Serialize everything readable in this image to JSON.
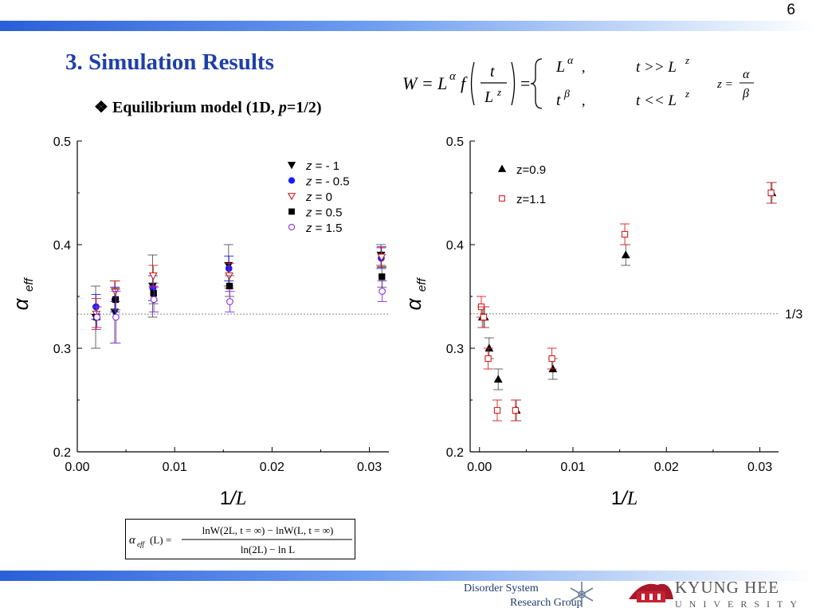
{
  "page_number": "6",
  "slide_title": "3. Simulation Results",
  "subtitle": {
    "bullet": "❖",
    "text_before": "Equilibrium model (1D, ",
    "p_symbol": "p",
    "text_after": "=1/2)"
  },
  "formula_main": {
    "lhs": "W = L",
    "alpha": "α",
    "f": "f",
    "t": "t",
    "L": "L",
    "z": "z",
    "eq": "=",
    "case1_value": "L",
    "case1_cond": "t >> L",
    "case2_value": "t",
    "beta": "β",
    "case2_cond": "t << L",
    "comma": ",",
    "z_eq": "z =",
    "ratio_num": "α",
    "ratio_den": "β"
  },
  "formula_alpha_eff": {
    "lhs": "α",
    "lhs_sub": "eff",
    "lhs_arg": "(L) =",
    "numerator": "lnW(2L, t = ∞) − lnW(L, t = ∞)",
    "denominator": "ln(2L) − ln L"
  },
  "logos": {
    "dsrg_line1": "Disorder System",
    "dsrg_line2": "Research Group",
    "khu_line1": "KYUNG HEE",
    "khu_line2": "UNIVERSITY"
  },
  "colors": {
    "title": "#1f3fa8",
    "band_start": "#2a5fd8",
    "series_black": "#000000",
    "series_blue": "#1a1aff",
    "series_red": "#d42020",
    "series_purple": "#8a2be2"
  },
  "chart_data": [
    {
      "type": "scatter",
      "xlabel_left": "1",
      "xlabel_slash": "/",
      "xlabel_italic": "L",
      "ylabel_symbol": "α",
      "ylabel_sub": "eff",
      "xlim": [
        0.0,
        0.032
      ],
      "ylim": [
        0.2,
        0.5
      ],
      "xticks": [
        "0.00",
        "0.01",
        "0.02",
        "0.03"
      ],
      "xtick_values": [
        0.0,
        0.01,
        0.02,
        0.03
      ],
      "yticks": [
        "0.2",
        "0.3",
        "0.4",
        "0.5"
      ],
      "ytick_values": [
        0.2,
        0.3,
        0.4,
        0.5
      ],
      "reference_line": 0.333,
      "legend_position": "top-right",
      "series": [
        {
          "name_var": "z",
          "name_value": " = - 1",
          "marker": "triangle-down",
          "color": "#000000",
          "fill": true,
          "x": [
            0.00195,
            0.0039,
            0.0078,
            0.0156,
            0.03125
          ],
          "y": [
            0.33,
            0.335,
            0.36,
            0.38,
            0.39
          ],
          "err": [
            0.03,
            0.03,
            0.03,
            0.02,
            0.01
          ]
        },
        {
          "name_var": "z",
          "name_value": " = - 0.5",
          "marker": "circle",
          "color": "#1a1aff",
          "fill": true,
          "x": [
            0.00195,
            0.0039,
            0.0078,
            0.0156,
            0.03125
          ],
          "y": [
            0.34,
            0.347,
            0.358,
            0.377,
            0.387
          ],
          "err": [
            0.012,
            0.012,
            0.012,
            0.012,
            0.01
          ]
        },
        {
          "name_var": "z",
          "name_value": " = 0",
          "marker": "triangle-down",
          "color": "#d42020",
          "fill": false,
          "x": [
            0.00195,
            0.0039,
            0.0078,
            0.0156,
            0.03125
          ],
          "y": [
            0.333,
            0.355,
            0.37,
            0.37,
            0.388
          ],
          "err": [
            0.015,
            0.01,
            0.01,
            0.012,
            0.01
          ]
        },
        {
          "name_var": "z",
          "name_value": " = 0.5",
          "marker": "square",
          "color": "#000000",
          "fill": true,
          "x": [
            0.00195,
            0.0039,
            0.0078,
            0.0156,
            0.03125
          ],
          "y": [
            0.33,
            0.347,
            0.353,
            0.36,
            0.369
          ],
          "err": [
            0.01,
            0.01,
            0.01,
            0.01,
            0.01
          ]
        },
        {
          "name_var": "z",
          "name_value": " = 1.5",
          "marker": "circle",
          "color": "#8a2be2",
          "fill": false,
          "x": [
            0.00195,
            0.0039,
            0.0078,
            0.0156,
            0.03125
          ],
          "y": [
            0.33,
            0.33,
            0.347,
            0.345,
            0.355
          ],
          "err": [
            0.01,
            0.025,
            0.012,
            0.01,
            0.01
          ]
        }
      ]
    },
    {
      "type": "scatter",
      "xlabel_left": "1",
      "xlabel_slash": "/",
      "xlabel_italic": "L",
      "ylabel_symbol": "α",
      "ylabel_sub": "eff",
      "xlim": [
        -0.001,
        0.032
      ],
      "ylim": [
        0.2,
        0.5
      ],
      "xticks": [
        "0.00",
        "0.01",
        "0.02",
        "0.03"
      ],
      "xtick_values": [
        0.0,
        0.01,
        0.02,
        0.03
      ],
      "yticks": [
        "0.2",
        "0.3",
        "0.4",
        "0.5"
      ],
      "ytick_values": [
        0.2,
        0.3,
        0.4,
        0.5
      ],
      "reference_line": 0.3333,
      "reference_label": "1/3",
      "legend_position": "top-left",
      "series": [
        {
          "name": "z=0.9",
          "marker": "triangle-up",
          "color": "#000000",
          "fill": true,
          "x": [
            0.00024,
            0.00049,
            0.00098,
            0.00195,
            0.0039,
            0.0078,
            0.0156,
            0.03125
          ],
          "y": [
            0.33,
            0.33,
            0.3,
            0.27,
            0.24,
            0.28,
            0.39,
            0.45
          ],
          "err": [
            0.01,
            0.01,
            0.01,
            0.01,
            0.01,
            0.01,
            0.01,
            0.01
          ]
        },
        {
          "name": "z=1.1",
          "marker": "square",
          "color": "#d42020",
          "fill": false,
          "x": [
            0.00024,
            0.00049,
            0.00098,
            0.00195,
            0.0039,
            0.0078,
            0.0156,
            0.03125
          ],
          "y": [
            0.34,
            0.33,
            0.29,
            0.24,
            0.24,
            0.29,
            0.41,
            0.45
          ],
          "err": [
            0.01,
            0.01,
            0.01,
            0.01,
            0.01,
            0.01,
            0.01,
            0.01
          ]
        }
      ]
    }
  ]
}
